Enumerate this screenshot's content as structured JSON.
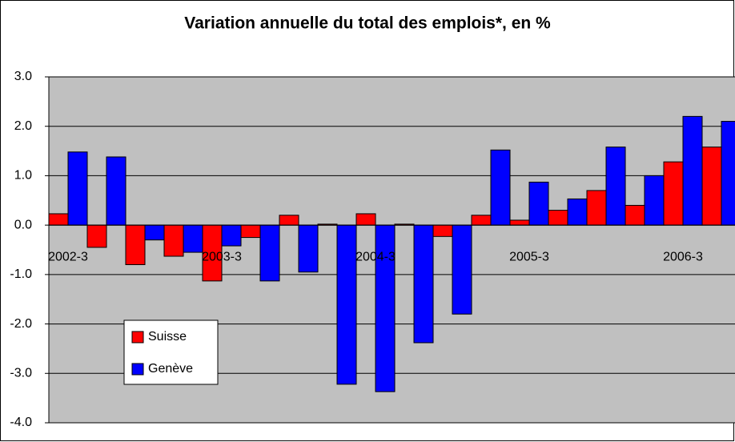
{
  "chart_data": {
    "type": "bar",
    "title": "Variation annuelle du total des emplois*, en %",
    "categories": [
      "2002-3",
      null,
      null,
      null,
      "2003-3",
      null,
      null,
      null,
      "2004-3",
      null,
      null,
      null,
      "2005-3",
      null,
      null,
      null,
      "2006-3",
      null
    ],
    "series": [
      {
        "name": "Suisse",
        "color": "#ff0000",
        "values": [
          0.23,
          -0.45,
          -0.8,
          -0.63,
          -1.13,
          -0.25,
          0.2,
          0.02,
          0.23,
          0.02,
          -0.23,
          0.2,
          0.1,
          0.3,
          0.7,
          0.4,
          1.28,
          1.58
        ]
      },
      {
        "name": "Genève",
        "color": "#0000ff",
        "values": [
          1.48,
          1.38,
          -0.3,
          -0.55,
          -0.42,
          -1.13,
          -0.95,
          -3.22,
          -3.37,
          -2.38,
          -1.8,
          1.52,
          0.87,
          0.53,
          1.58,
          1.0,
          2.2,
          2.1
        ]
      }
    ],
    "ylim": [
      -4,
      3
    ],
    "yticks": [
      {
        "value": -4,
        "label": "-4.0"
      },
      {
        "value": -3,
        "label": "-3.0"
      },
      {
        "value": -2,
        "label": "-2.0"
      },
      {
        "value": -1,
        "label": "-1.0"
      },
      {
        "value": 0,
        "label": "0.0"
      },
      {
        "value": 1,
        "label": "1.0"
      },
      {
        "value": 2,
        "label": "2.0"
      },
      {
        "value": 3,
        "label": "3.0"
      }
    ],
    "grid": true,
    "legend": "lower left"
  }
}
